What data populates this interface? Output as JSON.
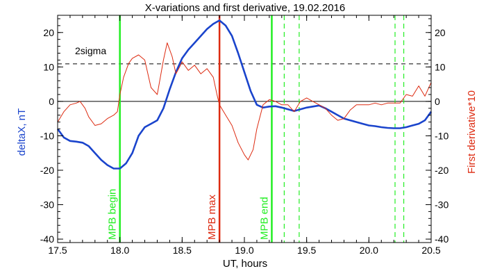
{
  "chart_data": {
    "type": "line",
    "title": "X-variations and first derivative, 19.02.2016",
    "xlabel": "UT, hours",
    "ylabel_left": "deltaX, nT",
    "ylabel_right": "First derivative*10",
    "xlim": [
      17.5,
      20.5
    ],
    "ylim": [
      -41,
      25
    ],
    "x_ticks": [
      "17.5",
      "18.0",
      "18.5",
      "19.0",
      "19.5",
      "20.0",
      "20.5"
    ],
    "y_ticks": [
      "-40",
      "-30",
      "-20",
      "-10",
      "0",
      "10",
      "20"
    ],
    "colors": {
      "deltaX": "#1a44cc",
      "derivative": "#dd2a10",
      "mpb": "#22ee22",
      "mpb_max": "#dd2a10"
    },
    "threshold": {
      "label": "2sigma",
      "value": 10.9
    },
    "zero_line": 0,
    "vlines": [
      {
        "label": "MPB begin",
        "x": 18.0,
        "color": "#22ee22",
        "style": "solid"
      },
      {
        "label": "MPB max",
        "x": 18.8,
        "color": "#dd2a10",
        "style": "solid"
      },
      {
        "label": "MPB end",
        "x": 19.22,
        "color": "#22ee22",
        "style": "solid"
      }
    ],
    "dashed_vlines": [
      {
        "x": 19.32,
        "color": "#22ee22"
      },
      {
        "x": 19.44,
        "color": "#22ee22"
      },
      {
        "x": 20.21,
        "color": "#22ee22"
      },
      {
        "x": 20.28,
        "color": "#22ee22"
      }
    ],
    "series": [
      {
        "name": "deltaX, nT",
        "color": "#1a44cc",
        "x": [
          17.5,
          17.55,
          17.6,
          17.65,
          17.7,
          17.75,
          17.8,
          17.85,
          17.9,
          17.95,
          18.0,
          18.05,
          18.1,
          18.15,
          18.2,
          18.25,
          18.3,
          18.35,
          18.4,
          18.45,
          18.5,
          18.55,
          18.6,
          18.65,
          18.7,
          18.75,
          18.8,
          18.85,
          18.9,
          18.95,
          19.0,
          19.05,
          19.1,
          19.15,
          19.2,
          19.25,
          19.3,
          19.35,
          19.4,
          19.45,
          19.5,
          19.55,
          19.6,
          19.65,
          19.7,
          19.75,
          19.8,
          19.85,
          19.9,
          19.95,
          20.0,
          20.05,
          20.1,
          20.15,
          20.2,
          20.25,
          20.3,
          20.35,
          20.4,
          20.45,
          20.5
        ],
        "values": [
          -8,
          -10.5,
          -11.5,
          -11.7,
          -12,
          -13,
          -15,
          -17,
          -18.5,
          -19.5,
          -19.5,
          -18,
          -15,
          -10,
          -7.5,
          -6.5,
          -5.5,
          -2,
          3.5,
          8.5,
          12.5,
          15,
          17,
          19,
          21,
          22.5,
          23.5,
          22,
          19,
          14,
          8.5,
          3,
          -1,
          -1.8,
          -1.5,
          -1.4,
          -1.8,
          -2.3,
          -2.8,
          -2.3,
          -1.8,
          -1.5,
          -1.2,
          -2,
          -3,
          -4,
          -5,
          -5.5,
          -6,
          -6.5,
          -7,
          -7.2,
          -7.5,
          -7.7,
          -7.8,
          -7.8,
          -7.5,
          -7,
          -6.5,
          -5.5,
          -3
        ]
      },
      {
        "name": "First derivative*10",
        "color": "#dd2a10",
        "x": [
          17.5,
          17.55,
          17.6,
          17.65,
          17.68,
          17.72,
          17.75,
          17.8,
          17.85,
          17.9,
          17.95,
          17.98,
          18.0,
          18.03,
          18.07,
          18.1,
          18.15,
          18.2,
          18.25,
          18.3,
          18.35,
          18.38,
          18.42,
          18.45,
          18.48,
          18.5,
          18.55,
          18.6,
          18.65,
          18.7,
          18.75,
          18.78,
          18.8,
          18.85,
          18.9,
          18.95,
          19.0,
          19.03,
          19.07,
          19.1,
          19.15,
          19.2,
          19.25,
          19.3,
          19.35,
          19.4,
          19.45,
          19.5,
          19.55,
          19.6,
          19.65,
          19.7,
          19.75,
          19.8,
          19.85,
          19.9,
          19.95,
          20.0,
          20.05,
          20.1,
          20.15,
          20.2,
          20.25,
          20.3,
          20.35,
          20.4,
          20.45,
          20.5
        ],
        "values": [
          -6,
          -3,
          -1,
          -0.5,
          0,
          -2,
          -4.5,
          -7,
          -6.5,
          -5,
          -4,
          -3,
          2,
          7,
          11,
          12.5,
          13.5,
          12,
          4,
          2,
          12,
          17,
          13,
          8,
          10,
          11.5,
          9,
          10.5,
          8,
          9.5,
          7,
          2,
          -1,
          -4,
          -7,
          -12,
          -15.5,
          -17,
          -14,
          -8,
          -1,
          0.5,
          0,
          -1,
          -1,
          -3,
          0,
          1,
          0,
          -1,
          -2,
          -4,
          -5.5,
          -5,
          -2.5,
          -1,
          -1,
          -1,
          -0.5,
          -1,
          -0.5,
          -0.5,
          -0.5,
          2,
          1.5,
          4.5,
          1.5,
          5.5
        ]
      }
    ]
  }
}
